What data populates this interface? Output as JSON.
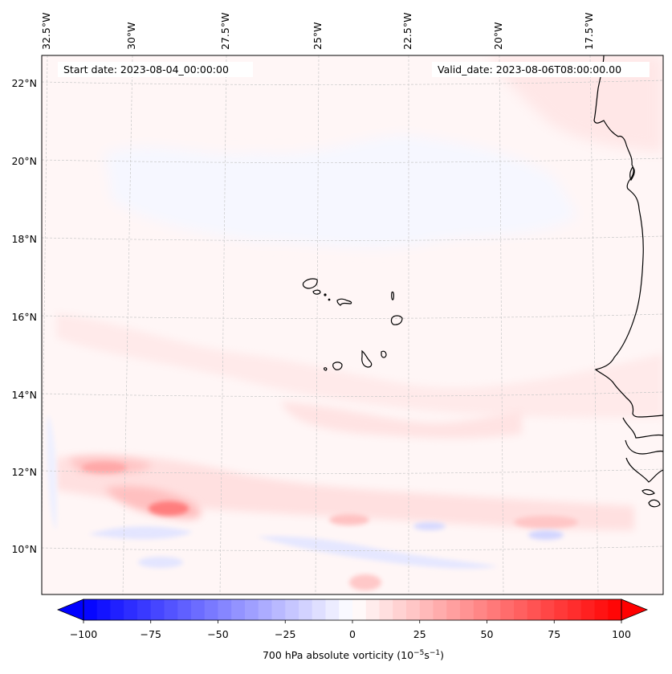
{
  "figure": {
    "start_date_label": "Start date: 2023-08-04_00:00:00",
    "valid_date_label": "Valid_date: 2023-08-06T08:00:00.00"
  },
  "map": {
    "projection": "lambert-conformal",
    "lon_ticks": [
      {
        "value": -32.5,
        "label": "32.5°W"
      },
      {
        "value": -30,
        "label": "30°W"
      },
      {
        "value": -27.5,
        "label": "27.5°W"
      },
      {
        "value": -25,
        "label": "25°W"
      },
      {
        "value": -22.5,
        "label": "22.5°W"
      },
      {
        "value": -20,
        "label": "20°W"
      },
      {
        "value": -17.5,
        "label": "17.5°W"
      }
    ],
    "lat_ticks": [
      {
        "value": 22,
        "label": "22°N"
      },
      {
        "value": 20,
        "label": "20°N"
      },
      {
        "value": 18,
        "label": "18°N"
      },
      {
        "value": 16,
        "label": "16°N"
      },
      {
        "value": 14,
        "label": "14°N"
      },
      {
        "value": 12,
        "label": "12°N"
      },
      {
        "value": 10,
        "label": "10°N"
      }
    ],
    "extent": {
      "lon_min": -32.6,
      "lon_max": -15.3,
      "lat_min": 8.9,
      "lat_max": 22.8
    },
    "features": [
      "Cape Verde islands",
      "West African coastline (Western Sahara, Mauritania, Senegal, Gambia, Guinea-Bissau, Guinea)"
    ]
  },
  "chart_data": {
    "type": "heatmap",
    "title": "",
    "variable": "700 hPa absolute vorticity",
    "units": "10^-5 s^-1",
    "colorbar": {
      "label_main": "700 hPa absolute vorticity (10",
      "label_exp1": "−5",
      "label_mid": "s",
      "label_exp2": "−1",
      "label_end": ")",
      "vmin": -100,
      "vmax": 100,
      "level_step": 5,
      "extend": "both",
      "cmap": "bwr",
      "ticks": [
        {
          "value": -100,
          "label": "−100"
        },
        {
          "value": -75,
          "label": "−75"
        },
        {
          "value": -50,
          "label": "−50"
        },
        {
          "value": -25,
          "label": "−25"
        },
        {
          "value": 0,
          "label": "0"
        },
        {
          "value": 25,
          "label": "25"
        },
        {
          "value": 50,
          "label": "50"
        },
        {
          "value": 75,
          "label": "75"
        },
        {
          "value": 100,
          "label": "100"
        }
      ],
      "colors": {
        "min": "#0000ff",
        "mid": "#ffffff",
        "max": "#ff0000"
      }
    },
    "field_features": [
      {
        "lon": -29.3,
        "lat": 11.1,
        "value": 40,
        "kind": "max"
      },
      {
        "lon": -30.5,
        "lat": 12.0,
        "value": 25,
        "kind": "max"
      },
      {
        "lon": -24.5,
        "lat": 10.8,
        "value": 20,
        "kind": "max"
      },
      {
        "lon": -21.5,
        "lat": 10.6,
        "value": 20,
        "kind": "max"
      },
      {
        "lon": -19.0,
        "lat": 10.8,
        "value": 20,
        "kind": "max"
      },
      {
        "lon": -22.0,
        "lat": 9.5,
        "value": 15,
        "kind": "max"
      },
      {
        "lon": -28.5,
        "lat": 10.4,
        "value": -10,
        "kind": "min"
      },
      {
        "lon": -23.0,
        "lat": 10.0,
        "value": -10,
        "kind": "min"
      },
      {
        "lon": -18.5,
        "lat": 10.1,
        "value": -15,
        "kind": "min"
      },
      {
        "lon": -32.0,
        "lat": 12.5,
        "value": -5,
        "kind": "min"
      },
      {
        "lon": -16.5,
        "lat": 22.0,
        "value": 5,
        "kind": "max"
      }
    ]
  }
}
